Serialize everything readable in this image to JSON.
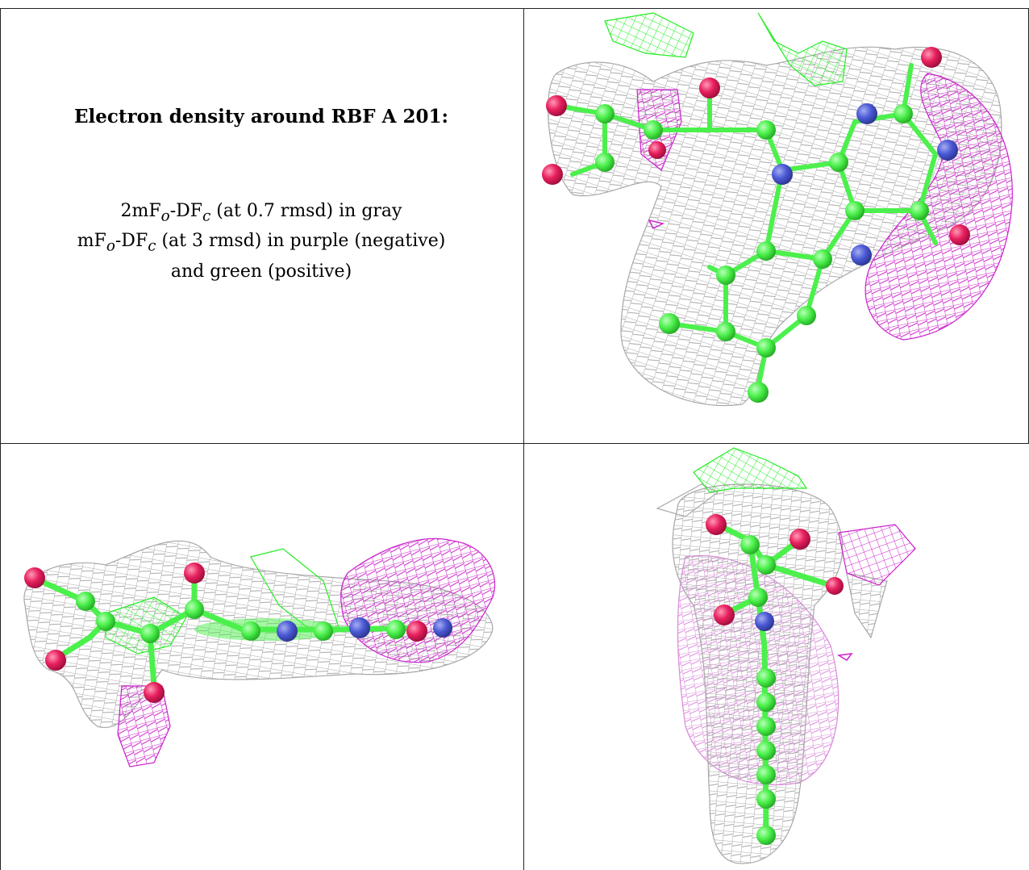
{
  "caption": {
    "title": "Electron density around RBF A 201:",
    "legend_lines": [
      "2mFo-DFc (at 0.7 rmsd) in gray",
      "mFo-DFc (at 3 rmsd) in purple (negative)",
      "and green (positive)"
    ]
  },
  "panels": [
    {
      "view": "face-on ring view",
      "mesh_colors": [
        "gray",
        "purple",
        "green"
      ]
    },
    {
      "view": "side view",
      "mesh_colors": [
        "gray",
        "purple",
        "green"
      ]
    },
    {
      "view": "edge-on view",
      "mesh_colors": [
        "gray",
        "purple",
        "green"
      ]
    }
  ],
  "colors": {
    "gray_mesh": "#a8a8a8",
    "purple_mesh": "#cc22cc",
    "green_mesh": "#22ee22",
    "carbon": "#4cf04c",
    "nitrogen": "#4c5ad6",
    "oxygen": "#e8205e",
    "frame": "#222222"
  }
}
